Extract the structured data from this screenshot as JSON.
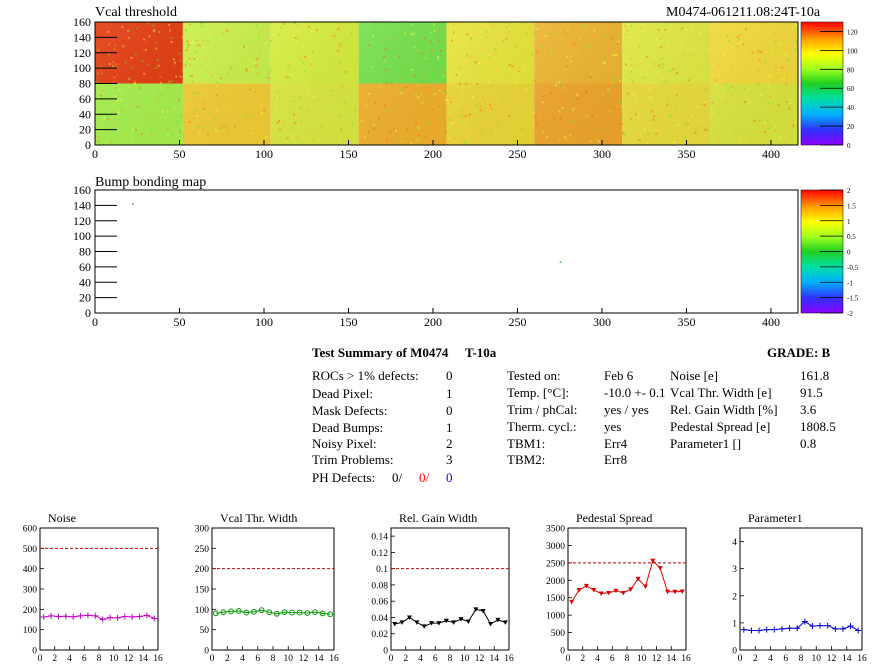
{
  "header": {
    "title": "Vcal threshold",
    "module_id": "M0474-061211.08:24T-10a"
  },
  "vcal_map": {
    "x_ticks": [
      "0",
      "50",
      "100",
      "150",
      "200",
      "250",
      "300",
      "350",
      "400"
    ],
    "y_ticks": [
      "0",
      "20",
      "40",
      "60",
      "80",
      "100",
      "120",
      "140",
      "160"
    ],
    "palette_ticks": [
      "0",
      "20",
      "40",
      "60",
      "80",
      "100",
      "120"
    ],
    "xlim": [
      0,
      416
    ],
    "ylim": [
      0,
      160
    ],
    "zlim": [
      0,
      130
    ]
  },
  "bump_map": {
    "title": "Bump bonding map",
    "x_ticks": [
      "0",
      "50",
      "100",
      "150",
      "200",
      "250",
      "300",
      "350",
      "400"
    ],
    "y_ticks": [
      "0",
      "20",
      "40",
      "60",
      "80",
      "100",
      "120",
      "140",
      "160"
    ],
    "palette_ticks": [
      "-2",
      "-1.5",
      "-1",
      "-0.5",
      "0",
      "0.5",
      "1",
      "1.5",
      "2"
    ],
    "points": [
      [
        22,
        143
      ],
      [
        275,
        67
      ]
    ]
  },
  "summary": {
    "title": "Test Summary of M0474",
    "temp_label": "T-10a",
    "grade": "GRADE:  B",
    "defects": [
      {
        "label": "ROCs > 1% defects:",
        "value": "0"
      },
      {
        "label": "Dead Pixel:",
        "value": "1"
      },
      {
        "label": "Mask Defects:",
        "value": "0"
      },
      {
        "label": "Dead Bumps:",
        "value": "1"
      },
      {
        "label": "Noisy Pixel:",
        "value": "2"
      },
      {
        "label": "Trim Problems:",
        "value": "3"
      }
    ],
    "ph_label": "PH Defects:",
    "ph_values": [
      "0/",
      "0/",
      "0"
    ],
    "ph_colors": [
      "#000000",
      "#ff0000",
      "#0000ff"
    ],
    "conditions": [
      {
        "label": "Tested on:",
        "value": "Feb 6"
      },
      {
        "label": "Temp. [°C]:",
        "value": "-10.0 +- 0.1"
      },
      {
        "label": "Trim / phCal:",
        "value": "yes / yes"
      },
      {
        "label": "Therm. cycl.:",
        "value": "yes"
      },
      {
        "label": "TBM1:",
        "value": "Err4"
      },
      {
        "label": "TBM2:",
        "value": "Err8"
      }
    ],
    "params": [
      {
        "label": "Noise [e]",
        "value": "161.8"
      },
      {
        "label": "Vcal Thr. Width [e]",
        "value": "91.5"
      },
      {
        "label": "Rel. Gain Width [%]",
        "value": "3.6"
      },
      {
        "label": "Pedestal Spread [e]",
        "value": "1808.5"
      },
      {
        "label": "Parameter1 []",
        "value": "0.8"
      }
    ]
  },
  "colors": {
    "noise": "#cc00cc",
    "vcal": "#009900",
    "gain": "#000000",
    "pedestal": "#dd0000",
    "param1": "#0000cc",
    "cut": "#cc0000"
  },
  "chart_data": [
    {
      "type": "line",
      "title": "Noise",
      "x": [
        0,
        1,
        2,
        3,
        4,
        5,
        6,
        7,
        8,
        9,
        10,
        11,
        12,
        13,
        14,
        15
      ],
      "values": [
        162,
        168,
        165,
        166,
        163,
        168,
        170,
        168,
        150,
        160,
        158,
        165,
        163,
        165,
        170,
        155
      ],
      "xlim": [
        0,
        16
      ],
      "ylim": [
        0,
        600
      ],
      "cut": 500,
      "yticks": [
        "0",
        "100",
        "200",
        "300",
        "400",
        "500",
        "600"
      ],
      "marker": "cross"
    },
    {
      "type": "line",
      "title": "Vcal Thr. Width",
      "x": [
        0,
        1,
        2,
        3,
        4,
        5,
        6,
        7,
        8,
        9,
        10,
        11,
        12,
        13,
        14,
        15
      ],
      "values": [
        90,
        93,
        95,
        96,
        92,
        94,
        98,
        93,
        89,
        93,
        92,
        92,
        91,
        93,
        90,
        88
      ],
      "xlim": [
        0,
        16
      ],
      "ylim": [
        0,
        300
      ],
      "cut": 200,
      "yticks": [
        "0",
        "50",
        "100",
        "150",
        "200",
        "250",
        "300"
      ],
      "marker": "circle"
    },
    {
      "type": "line",
      "title": "Rel. Gain Width",
      "x": [
        0,
        1,
        2,
        3,
        4,
        5,
        6,
        7,
        8,
        9,
        10,
        11,
        12,
        13,
        14,
        15
      ],
      "values": [
        0.032,
        0.034,
        0.04,
        0.034,
        0.029,
        0.033,
        0.033,
        0.036,
        0.034,
        0.038,
        0.035,
        0.05,
        0.048,
        0.032,
        0.037,
        0.034
      ],
      "xlim": [
        0,
        16
      ],
      "ylim": [
        0,
        0.15
      ],
      "cut": 0.1,
      "yticks": [
        "0",
        "0.02",
        "0.04",
        "0.06",
        "0.08",
        "0.1",
        "0.12",
        "0.14"
      ],
      "marker": "tri"
    },
    {
      "type": "line",
      "title": "Pedestal Spread",
      "x": [
        0,
        1,
        2,
        3,
        4,
        5,
        6,
        7,
        8,
        9,
        10,
        11,
        12,
        13,
        14,
        15
      ],
      "values": [
        1380,
        1720,
        1840,
        1720,
        1620,
        1640,
        1700,
        1640,
        1740,
        2040,
        1820,
        2560,
        2350,
        1670,
        1670,
        1680
      ],
      "xlim": [
        0,
        16
      ],
      "ylim": [
        0,
        3500
      ],
      "cut": 2500,
      "yticks": [
        "0",
        "500",
        "1000",
        "1500",
        "2000",
        "2500",
        "3000",
        "3500"
      ],
      "marker": "tri"
    },
    {
      "type": "line",
      "title": "Parameter1",
      "x": [
        0,
        1,
        2,
        3,
        4,
        5,
        6,
        7,
        8,
        9,
        10,
        11,
        12,
        13,
        14,
        15
      ],
      "values": [
        0.75,
        0.72,
        0.72,
        0.75,
        0.75,
        0.78,
        0.8,
        0.8,
        1.05,
        0.88,
        0.9,
        0.9,
        0.78,
        0.78,
        0.88,
        0.72
      ],
      "xlim": [
        0,
        16
      ],
      "ylim": [
        0,
        4.5
      ],
      "cut": null,
      "yticks": [
        "0",
        "1",
        "2",
        "3",
        "4"
      ],
      "marker": "cross"
    }
  ],
  "chart_x_ticks": [
    "0",
    "2",
    "4",
    "6",
    "8",
    "10",
    "12",
    "14",
    "16"
  ]
}
